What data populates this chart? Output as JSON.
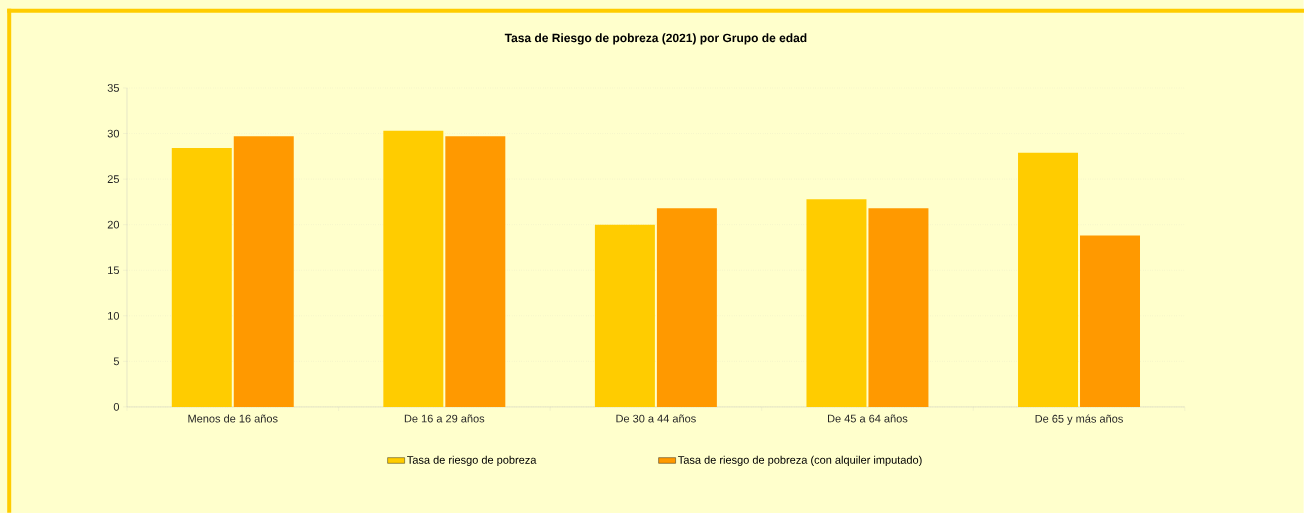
{
  "chart_data": {
    "type": "bar",
    "title": "Tasa de Riesgo de pobreza (2021) por Grupo de edad",
    "categories": [
      "Menos de 16 años",
      "De 16 a 29 años",
      "De 30 a 44 años",
      "De 45 a 64 años",
      "De 65 y más años"
    ],
    "series": [
      {
        "name": "Tasa de riesgo de pobreza",
        "color": "#ffcc00",
        "values": [
          28.4,
          30.3,
          20.0,
          22.8,
          27.9
        ]
      },
      {
        "name": "Tasa de riesgo de pobreza (con alquiler imputado)",
        "color": "#ff9900",
        "values": [
          29.7,
          29.7,
          21.8,
          21.8,
          18.8
        ]
      }
    ],
    "ylim": [
      0,
      35
    ],
    "yticks": [
      0,
      5,
      10,
      15,
      20,
      25,
      30,
      35
    ],
    "grid": "y",
    "legend": "bottom"
  }
}
